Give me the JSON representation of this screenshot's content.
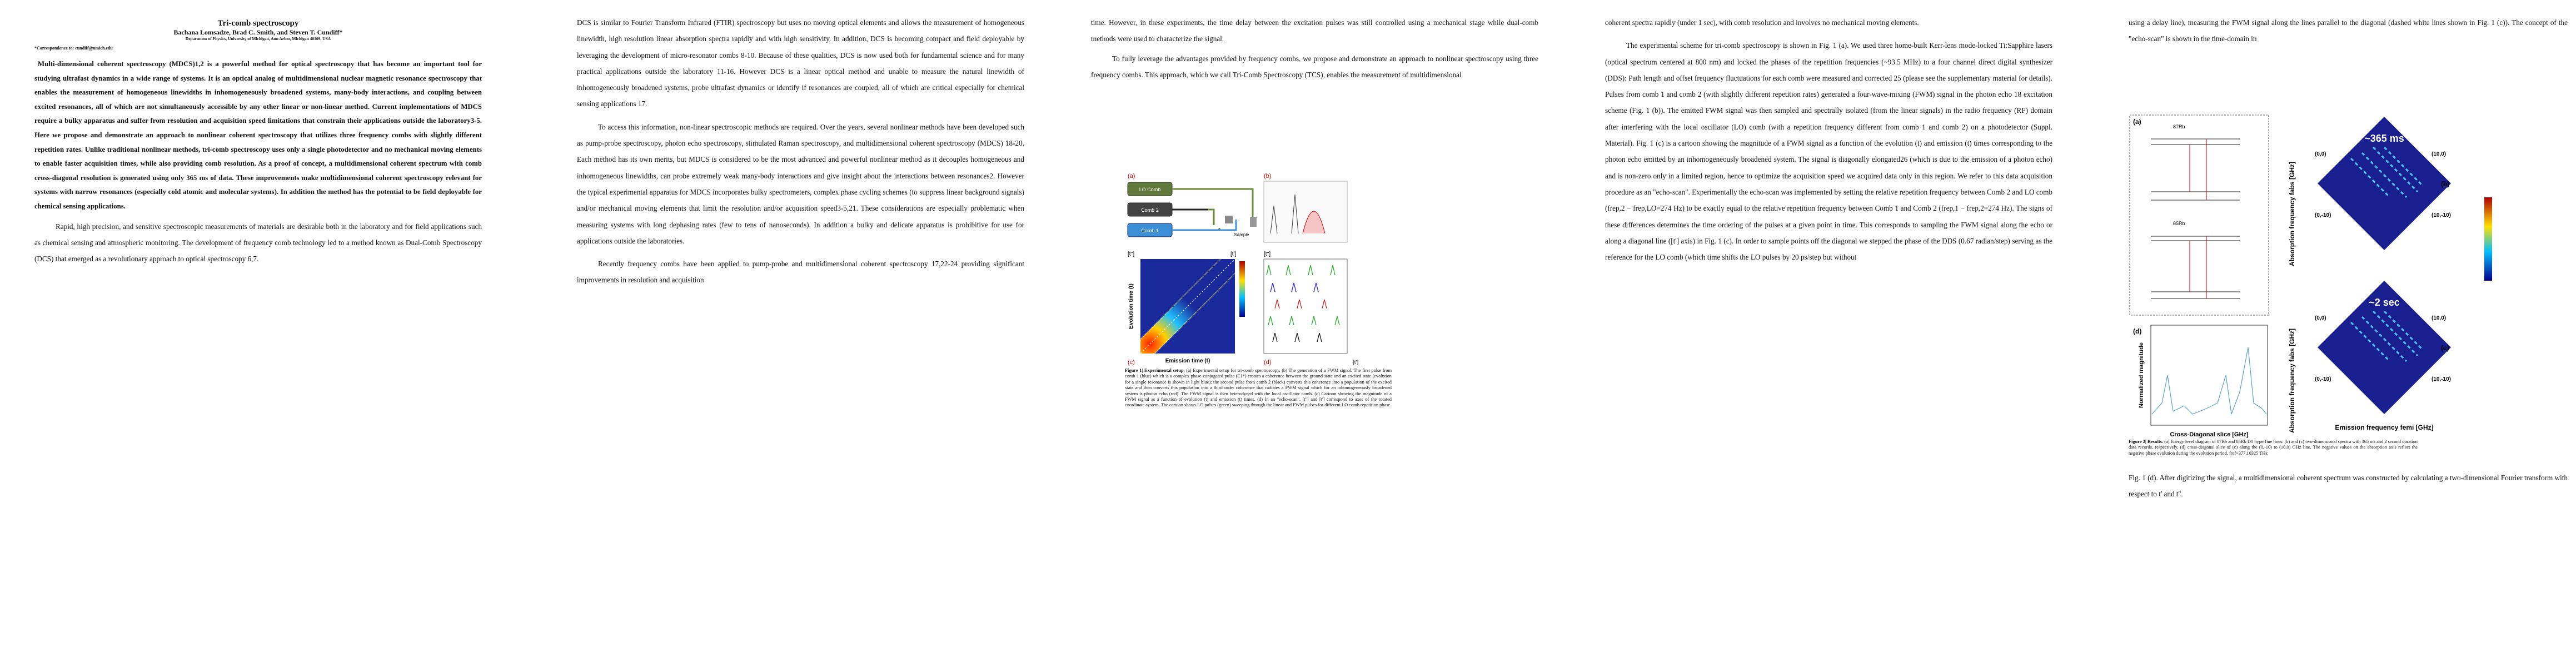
{
  "page1": {
    "title": "Tri-comb spectroscopy",
    "authors": "Bachana Lomsadze, Brad C. Smith, and Steven T. Cundiff*",
    "affiliation": "Department of Physics, University of Michigan, Ann Arbor, Michigan 48109, USA",
    "correspondence": "*Correspondence to: cundiff@umich.edu",
    "abstract": "Multi-dimensional coherent spectroscopy (MDCS)1,2 is a powerful method for optical spectroscopy that has become an important tool for studying ultrafast dynamics in a wide range of systems. It is an optical analog of multidimensional nuclear magnetic resonance spectroscopy that enables the measurement of homogeneous linewidths in inhomogeneously broadened systems, many-body interactions, and coupling between excited resonances, all of which are not simultaneously accessible by any other linear or non-linear method. Current implementations of MDCS require a bulky apparatus and suffer from resolution and acquisition speed limitations that constrain their applications outside the laboratory3-5. Here we propose and demonstrate an approach to nonlinear coherent spectroscopy that utilizes three frequency combs with slightly different repetition rates. Unlike traditional nonlinear methods, tri-comb spectroscopy uses only a single photodetector and no mechanical moving elements to enable faster acquisition times, while also providing comb resolution. As a proof of concept, a multidimensional coherent spectrum with comb cross-diagonal resolution is generated using only 365 ms of data. These improvements make multidimensional coherent spectroscopy relevant for systems with narrow resonances (especially cold atomic and molecular systems). In addition the method has the potential to be field deployable for chemical sensing applications.",
    "paragraph": "Rapid, high precision, and sensitive spectroscopic measurements of materials are desirable both in the laboratory and for field applications such as chemical sensing and atmospheric monitoring. The development of frequency comb technology led to a method known as Dual-Comb Spectroscopy (DCS) that emerged as a revolutionary approach to optical spectroscopy 6,7."
  },
  "page2": {
    "paragraphs": [
      "DCS is similar to Fourier Transform Infrared (FTIR) spectroscopy but uses no moving optical elements and allows the measurement of homogeneous linewidth, high resolution linear absorption spectra rapidly and with high sensitivity. In addition, DCS is becoming compact and field deployable by leveraging the development of micro-resonator combs 8-10. Because of these qualities, DCS is now used both for fundamental science and for many practical applications outside the laboratory 11-16. However DCS is a linear optical method and unable to measure the natural linewidth of inhomogeneously broadened systems, probe ultrafast dynamics or identify if resonances are coupled, all of which are critical especially for chemical sensing applications 17.",
      "To access this information, non-linear spectroscopic methods are required. Over the years, several nonlinear methods have been developed such as pump-probe spectroscopy, photon echo spectroscopy, stimulated Raman spectroscopy, and multidimensional coherent spectroscopy (MDCS) 18-20. Each method has its own merits, but MDCS is considered to be the most advanced and powerful nonlinear method as it decouples homogeneous and inhomogeneous linewidths, can probe extremely weak many-body interactions and give insight about the interactions between resonances2. However the typical experimental apparatus for MDCS incorporates bulky spectrometers, complex phase cycling schemes (to suppress linear background signals) and/or mechanical moving elements that limit the resolution and/or acquisition speed3-5,21. These considerations are especially problematic when measuring systems with long dephasing rates (few to tens of nanoseconds). In addition a bulky and delicate apparatus is prohibitive for use for applications outside the laboratories.",
      "Recently frequency combs have been applied to pump-probe and multidimensional coherent spectroscopy 17,22-24 providing significant improvements in resolution and acquisition"
    ]
  },
  "page3": {
    "paragraphs": [
      "time. However, in these experiments, the time delay between the excitation pulses was still controlled using a mechanical stage while dual-comb methods were used to characterize the signal.",
      "To fully leverage the advantages provided by frequency combs, we propose and demonstrate an approach to nonlinear spectroscopy using three frequency combs. This approach, which we call Tri-Comb Spectroscopy (TCS), enables the measurement of multidimensional"
    ],
    "figure": {
      "panel_a": "(a)",
      "panel_b": "(b)",
      "panel_c": "(c)",
      "panel_d": "(d)",
      "lo_comb": "LO Comb",
      "comb2": "Comb 2",
      "comb1": "Comb 1",
      "sample": "Sample",
      "c_top_left": "[t'']",
      "c_top_right": "[t']",
      "evolution_axis": "Evolution time (t)",
      "emission_axis": "Emission time (t)",
      "d_top_left": "[t'']",
      "d_bottom_right": "[t']",
      "caption_title": "Figure 1| Experimental setup.",
      "caption": "(a) Experimental setup for tri-comb spectroscopy. (b) The generation of a FWM signal. The first pulse from comb 1 (blue) which is a complex phase-conjugated pulse (E1*) creates a coherence between the ground state and an excited state (evolution for a single resonance is shown in light blue); the second pulse from comb 2 (black) converts this coherence into a population of the excited state and then converts this population into a third order coherence that radiates a FWM signal which for an inhomogeneously broadened system is photon echo (red). The FWM signal is then heterodyned with the local oscillator comb. (c) Cartoon showing the magnitude of a FWM signal as a function of evolution (t) and emission (t) times. (d) In an \"echo-scan\", [t''] and [t'] correspond to axes of the rotated coordinate system. The cartoon shows LO pulses (green) sweeping through the linear and FWM pulses for different LO comb repetition phase."
    }
  },
  "page4": {
    "paragraphs": [
      "coherent spectra rapidly (under 1 sec), with comb resolution and involves no mechanical moving elements.",
      "The experimental scheme for tri-comb spectroscopy is shown in Fig. 1 (a). We used three home-built Kerr-lens mode-locked Ti:Sapphire lasers (optical spectrum centered at 800 nm) and locked the phases of the repetition frequencies (~93.5 MHz) to a four channel direct digital synthesizer (DDS): Path length and offset frequency fluctuations for each comb were measured and corrected 25 (please see the supplementary material for details). Pulses from comb 1 and comb 2 (with slightly different repetition rates) generated a four-wave-mixing (FWM) signal in the photon echo 18 excitation scheme (Fig. 1 (b)). The emitted FWM signal was then sampled and spectrally isolated (from the linear signals) in the radio frequency (RF) domain after interfering with the local oscillator (LO) comb (with a repetition frequency different from comb 1 and comb 2) on a photodetector (Suppl. Material). Fig. 1 (c) is a cartoon showing the magnitude of a FWM signal as a function of the evolution (t) and emission (t) times corresponding to the photon echo emitted by an inhomogeneously broadened system. The signal is diagonally elongated26 (which is due to the emission of a photon echo) and is non-zero only in a limited region, hence to optimize the acquisition speed we acquired data only in this region. We refer to this data acquisition procedure as an \"echo-scan\". Experimentally the echo-scan was implemented by setting the relative repetition frequency between Comb 2 and LO comb (frep,2 − frep,LO=274 Hz) to be exactly equal to the relative repetition frequency between Comb 1 and Comb 2 (frep,1 − frep,2=274 Hz). The signs of these differences determines the time ordering of the pulses at a given point in time. This corresponds to sampling the FWM signal along the echo or along a diagonal line ([t'] axis) in Fig. 1 (c). In order to sample points off the diagonal we stepped the phase of the DDS (0.67 radian/step) serving as the reference for the LO comb (which time shifts the LO pulses by 20 ps/step but without"
    ]
  },
  "page5": {
    "paragraphs_before": [
      "using a delay line), measuring the FWM signal along the lines parallel to the diagonal (dashed white lines shown in Fig. 1 (c)). The concept of the \"echo-scan\" is shown in the time-domain in"
    ],
    "figure": {
      "panel_a": "(a)",
      "panel_b": "(b)",
      "panel_c": "(c)",
      "panel_d": "(d)",
      "rb87": "87Rb",
      "rb85": "85Rb",
      "duration_b": "~365 ms",
      "duration_c": "~2 sec",
      "b_top_left": "(0,0)",
      "b_top_right": "(10,0)",
      "b_bottom_left": "(0,-10)",
      "b_bottom_right": "(10,-10)",
      "c_top_left": "(0,0)",
      "c_top_right": "(10,0)",
      "c_bottom_left": "(0,-10)",
      "c_bottom_right": "(10,-10)",
      "absorption_axis_b": "Absorption frequency fabs [GHz]",
      "absorption_axis_c": "Absorption frequency fabs [GHz]",
      "emission_axis": "Emission frequency femi [GHz]",
      "slice_y": "Normalized magnitude",
      "slice_x": "Cross-Diagonal slice [GHz]",
      "caption_title": "Figure 2| Results.",
      "caption": "(a) Energy level diagram of 87Rb and 85Rb D1 hyperfine lines. (b) and (c) two-dimensional spectra with 365 ms and 2 second duration data records, respectively. (d) cross-diagonal slice of (c) along the (0,-10) to (10,0) GHz line. The negative values on the absorption axis reflect the negative phase evolution during the evolution period. fref=377.10325 THz"
    },
    "paragraphs_after": [
      "Fig. 1 (d). After digitizing the signal, a multidimensional coherent spectrum was constructed by calculating a two-dimensional Fourier transform with respect to t' and t''."
    ]
  }
}
